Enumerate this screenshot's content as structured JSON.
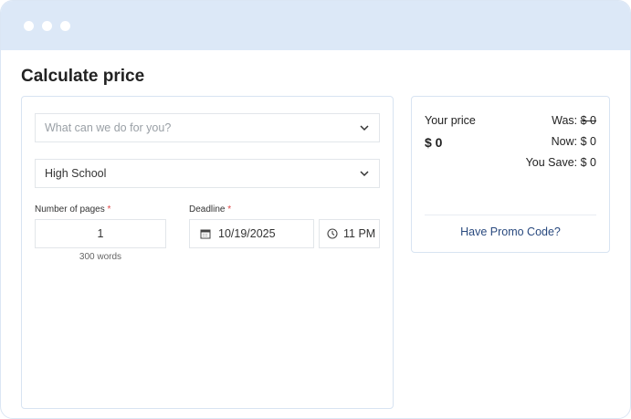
{
  "window": {
    "controls": [
      "dot",
      "dot",
      "dot"
    ]
  },
  "title": "Calculate price",
  "form": {
    "service": {
      "placeholder": "What can we do for you?"
    },
    "level": {
      "value": "High School"
    },
    "pages": {
      "label": "Number of pages",
      "required": "*",
      "value": "1",
      "words": "300 words"
    },
    "deadline": {
      "label": "Deadline",
      "required": "*",
      "date": "10/19/2025",
      "time": "11 PM"
    }
  },
  "price": {
    "your_price_label": "Your price",
    "your_price": "$ 0",
    "was_label": "Was:",
    "was_value": "$ 0",
    "now": "Now: $ 0",
    "save": "You Save: $ 0",
    "promo": "Have Promo Code?"
  },
  "colors": {
    "titlebar": "#dce8f7",
    "promo": "#2a4a7f",
    "required": "#e04545"
  }
}
